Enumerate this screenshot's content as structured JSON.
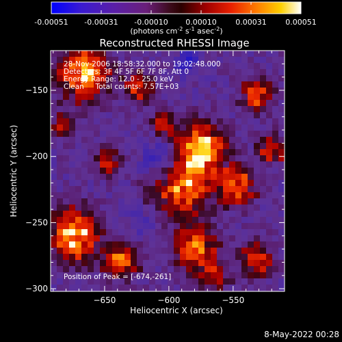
{
  "chart_data": {
    "type": "heatmap",
    "title": "Reconstructed RHESSI Image",
    "xlabel": "Heliocentric X (arcsec)",
    "ylabel": "Heliocentric Y (arcsec)",
    "xlim": [
      -692,
      -510
    ],
    "ylim": [
      -302,
      -120
    ],
    "xticks": [
      -650,
      -600,
      -550
    ],
    "yticks": [
      -150,
      -200,
      -250,
      -300
    ],
    "colorbar": {
      "ticks": [
        "-0.00051",
        "-0.00031",
        "-0.00010",
        "0.00010",
        "0.00031",
        "0.00051"
      ],
      "range": [
        -0.00051,
        0.00051
      ],
      "unit_label": "(photons cm⁻² s⁻¹ asec⁻²)",
      "unit_parts": [
        "(photons cm",
        "-2",
        " s",
        "-1",
        " asec",
        "-2",
        ")"
      ]
    },
    "annotations": [
      "28-Nov-2006 18:58:32.000 to 19:02:48.000",
      "Detectors: 3F 4F 5F 6F 7F 8F, Att 0",
      "Energy Range: 12.0 - 25.0 keV",
      "Clean     Total counts: 7.57E+03"
    ],
    "peak_label": "Position of Peak = [-674,-261]",
    "peak": [
      -674,
      -261
    ],
    "grid": "off",
    "footer_timestamp": "8-May-2022 00:28"
  }
}
